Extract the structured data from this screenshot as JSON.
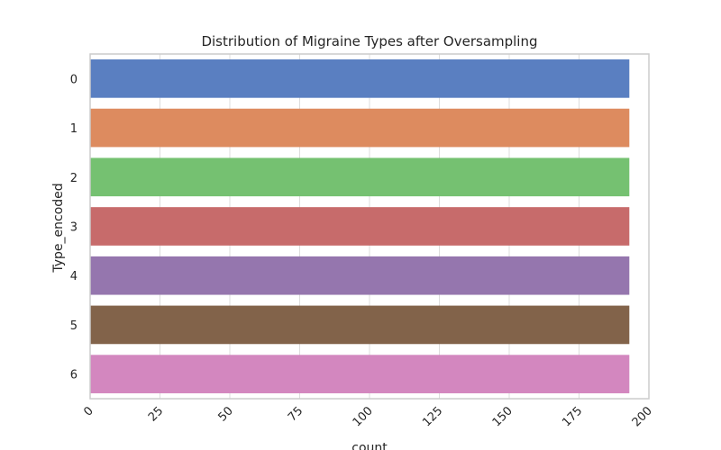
{
  "chart_data": {
    "type": "bar",
    "orientation": "horizontal",
    "title": "Distribution of Migraine Types after Oversampling",
    "xlabel": "count",
    "ylabel": "Type_encoded",
    "categories": [
      "0",
      "1",
      "2",
      "3",
      "4",
      "5",
      "6"
    ],
    "values": [
      193,
      193,
      193,
      193,
      193,
      193,
      193
    ],
    "xlim": [
      0,
      200
    ],
    "xticks": [
      "0",
      "25",
      "50",
      "75",
      "100",
      "125",
      "150",
      "175",
      "200"
    ],
    "colors": [
      "#5a7fc1",
      "#dd8b5f",
      "#75c171",
      "#c76b6b",
      "#9576ae",
      "#82634a",
      "#d387bf"
    ],
    "grid": true,
    "xtick_rotation": 45
  }
}
